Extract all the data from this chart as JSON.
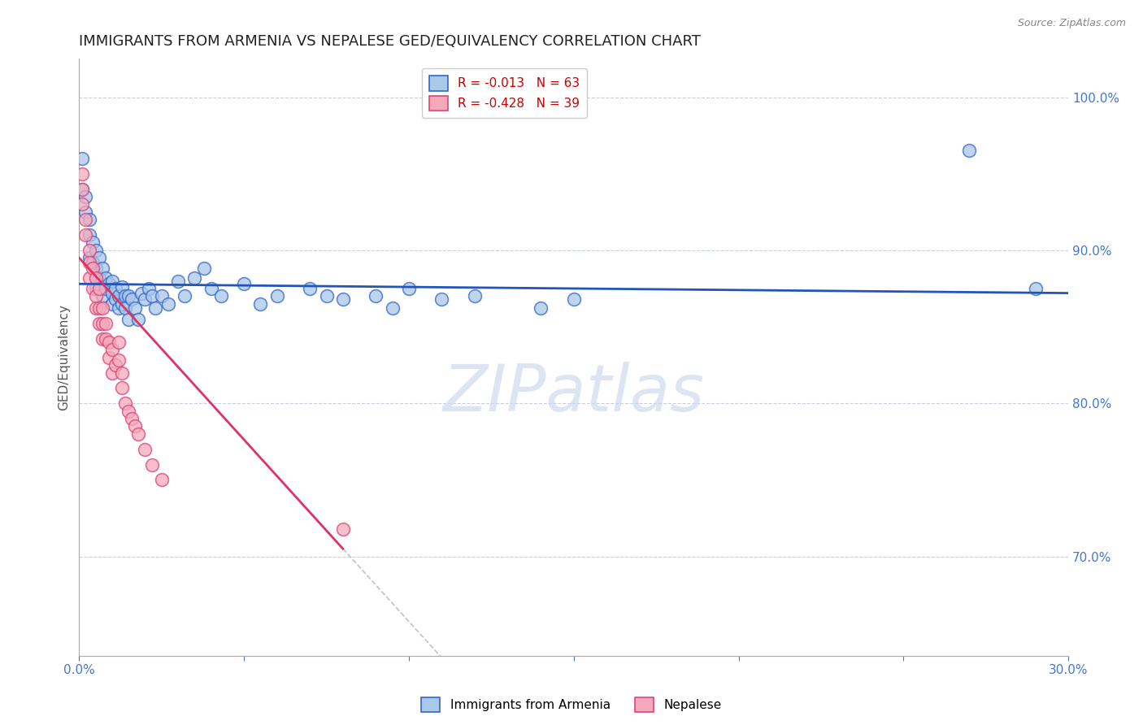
{
  "title": "IMMIGRANTS FROM ARMENIA VS NEPALESE GED/EQUIVALENCY CORRELATION CHART",
  "source": "Source: ZipAtlas.com",
  "ylabel": "GED/Equivalency",
  "legend_labels": [
    "Immigrants from Armenia",
    "Nepalese"
  ],
  "blue_R": -0.013,
  "blue_N": 63,
  "pink_R": -0.428,
  "pink_N": 39,
  "blue_color": "#aac8e8",
  "pink_color": "#f5aabb",
  "blue_edge_color": "#3366cc",
  "pink_edge_color": "#dd4477",
  "blue_line_color": "#2255bb",
  "pink_line_color": "#dd3366",
  "dashed_line_color": "#c0c0d0",
  "axis_color": "#4477cc",
  "xlim": [
    0.0,
    0.3
  ],
  "ylim": [
    0.635,
    1.025
  ],
  "x_ticks": [
    0.0,
    0.05,
    0.1,
    0.15,
    0.2,
    0.25,
    0.3
  ],
  "x_tick_labels": [
    "0.0%",
    "",
    "",
    "",
    "",
    "",
    "30.0%"
  ],
  "y_ticks_right": [
    0.7,
    0.8,
    0.9,
    1.0
  ],
  "y_tick_labels_right": [
    "70.0%",
    "80.0%",
    "90.0%",
    "100.0%"
  ],
  "blue_scatter_x": [
    0.001,
    0.001,
    0.002,
    0.002,
    0.003,
    0.003,
    0.003,
    0.004,
    0.004,
    0.005,
    0.005,
    0.005,
    0.006,
    0.006,
    0.007,
    0.007,
    0.008,
    0.008,
    0.009,
    0.01,
    0.01,
    0.01,
    0.011,
    0.011,
    0.012,
    0.012,
    0.013,
    0.013,
    0.014,
    0.014,
    0.015,
    0.015,
    0.016,
    0.017,
    0.018,
    0.019,
    0.02,
    0.021,
    0.022,
    0.023,
    0.025,
    0.027,
    0.03,
    0.032,
    0.035,
    0.038,
    0.04,
    0.043,
    0.05,
    0.055,
    0.06,
    0.07,
    0.075,
    0.08,
    0.09,
    0.095,
    0.1,
    0.11,
    0.12,
    0.14,
    0.15,
    0.27,
    0.29
  ],
  "blue_scatter_y": [
    0.96,
    0.94,
    0.935,
    0.925,
    0.92,
    0.91,
    0.895,
    0.905,
    0.892,
    0.9,
    0.888,
    0.875,
    0.895,
    0.882,
    0.888,
    0.87,
    0.882,
    0.875,
    0.878,
    0.872,
    0.865,
    0.88,
    0.868,
    0.875,
    0.862,
    0.87,
    0.865,
    0.876,
    0.87,
    0.862,
    0.855,
    0.87,
    0.868,
    0.862,
    0.855,
    0.872,
    0.868,
    0.875,
    0.87,
    0.862,
    0.87,
    0.865,
    0.88,
    0.87,
    0.882,
    0.888,
    0.875,
    0.87,
    0.878,
    0.865,
    0.87,
    0.875,
    0.87,
    0.868,
    0.87,
    0.862,
    0.875,
    0.868,
    0.87,
    0.862,
    0.868,
    0.965,
    0.875
  ],
  "pink_scatter_x": [
    0.001,
    0.001,
    0.001,
    0.002,
    0.002,
    0.003,
    0.003,
    0.003,
    0.004,
    0.004,
    0.005,
    0.005,
    0.005,
    0.006,
    0.006,
    0.006,
    0.007,
    0.007,
    0.007,
    0.008,
    0.008,
    0.009,
    0.009,
    0.01,
    0.01,
    0.011,
    0.012,
    0.012,
    0.013,
    0.013,
    0.014,
    0.015,
    0.016,
    0.017,
    0.018,
    0.02,
    0.022,
    0.025,
    0.08
  ],
  "pink_scatter_y": [
    0.95,
    0.94,
    0.93,
    0.92,
    0.91,
    0.9,
    0.892,
    0.882,
    0.888,
    0.875,
    0.882,
    0.87,
    0.862,
    0.875,
    0.862,
    0.852,
    0.862,
    0.852,
    0.842,
    0.852,
    0.842,
    0.84,
    0.83,
    0.835,
    0.82,
    0.825,
    0.84,
    0.828,
    0.82,
    0.81,
    0.8,
    0.795,
    0.79,
    0.785,
    0.78,
    0.77,
    0.76,
    0.75,
    0.718
  ],
  "blue_line_x": [
    0.0,
    0.3
  ],
  "blue_line_y": [
    0.878,
    0.872
  ],
  "pink_line_x": [
    0.0,
    0.08
  ],
  "pink_line_y": [
    0.895,
    0.705
  ],
  "dashed_line_x": [
    0.08,
    0.24
  ],
  "dashed_line_y": [
    0.705,
    0.325
  ],
  "grid_color": "#c8d0e0",
  "bg_color": "#ffffff",
  "title_fontsize": 13,
  "label_fontsize": 11,
  "tick_fontsize": 11,
  "legend_fontsize": 11,
  "marker_size": 130
}
